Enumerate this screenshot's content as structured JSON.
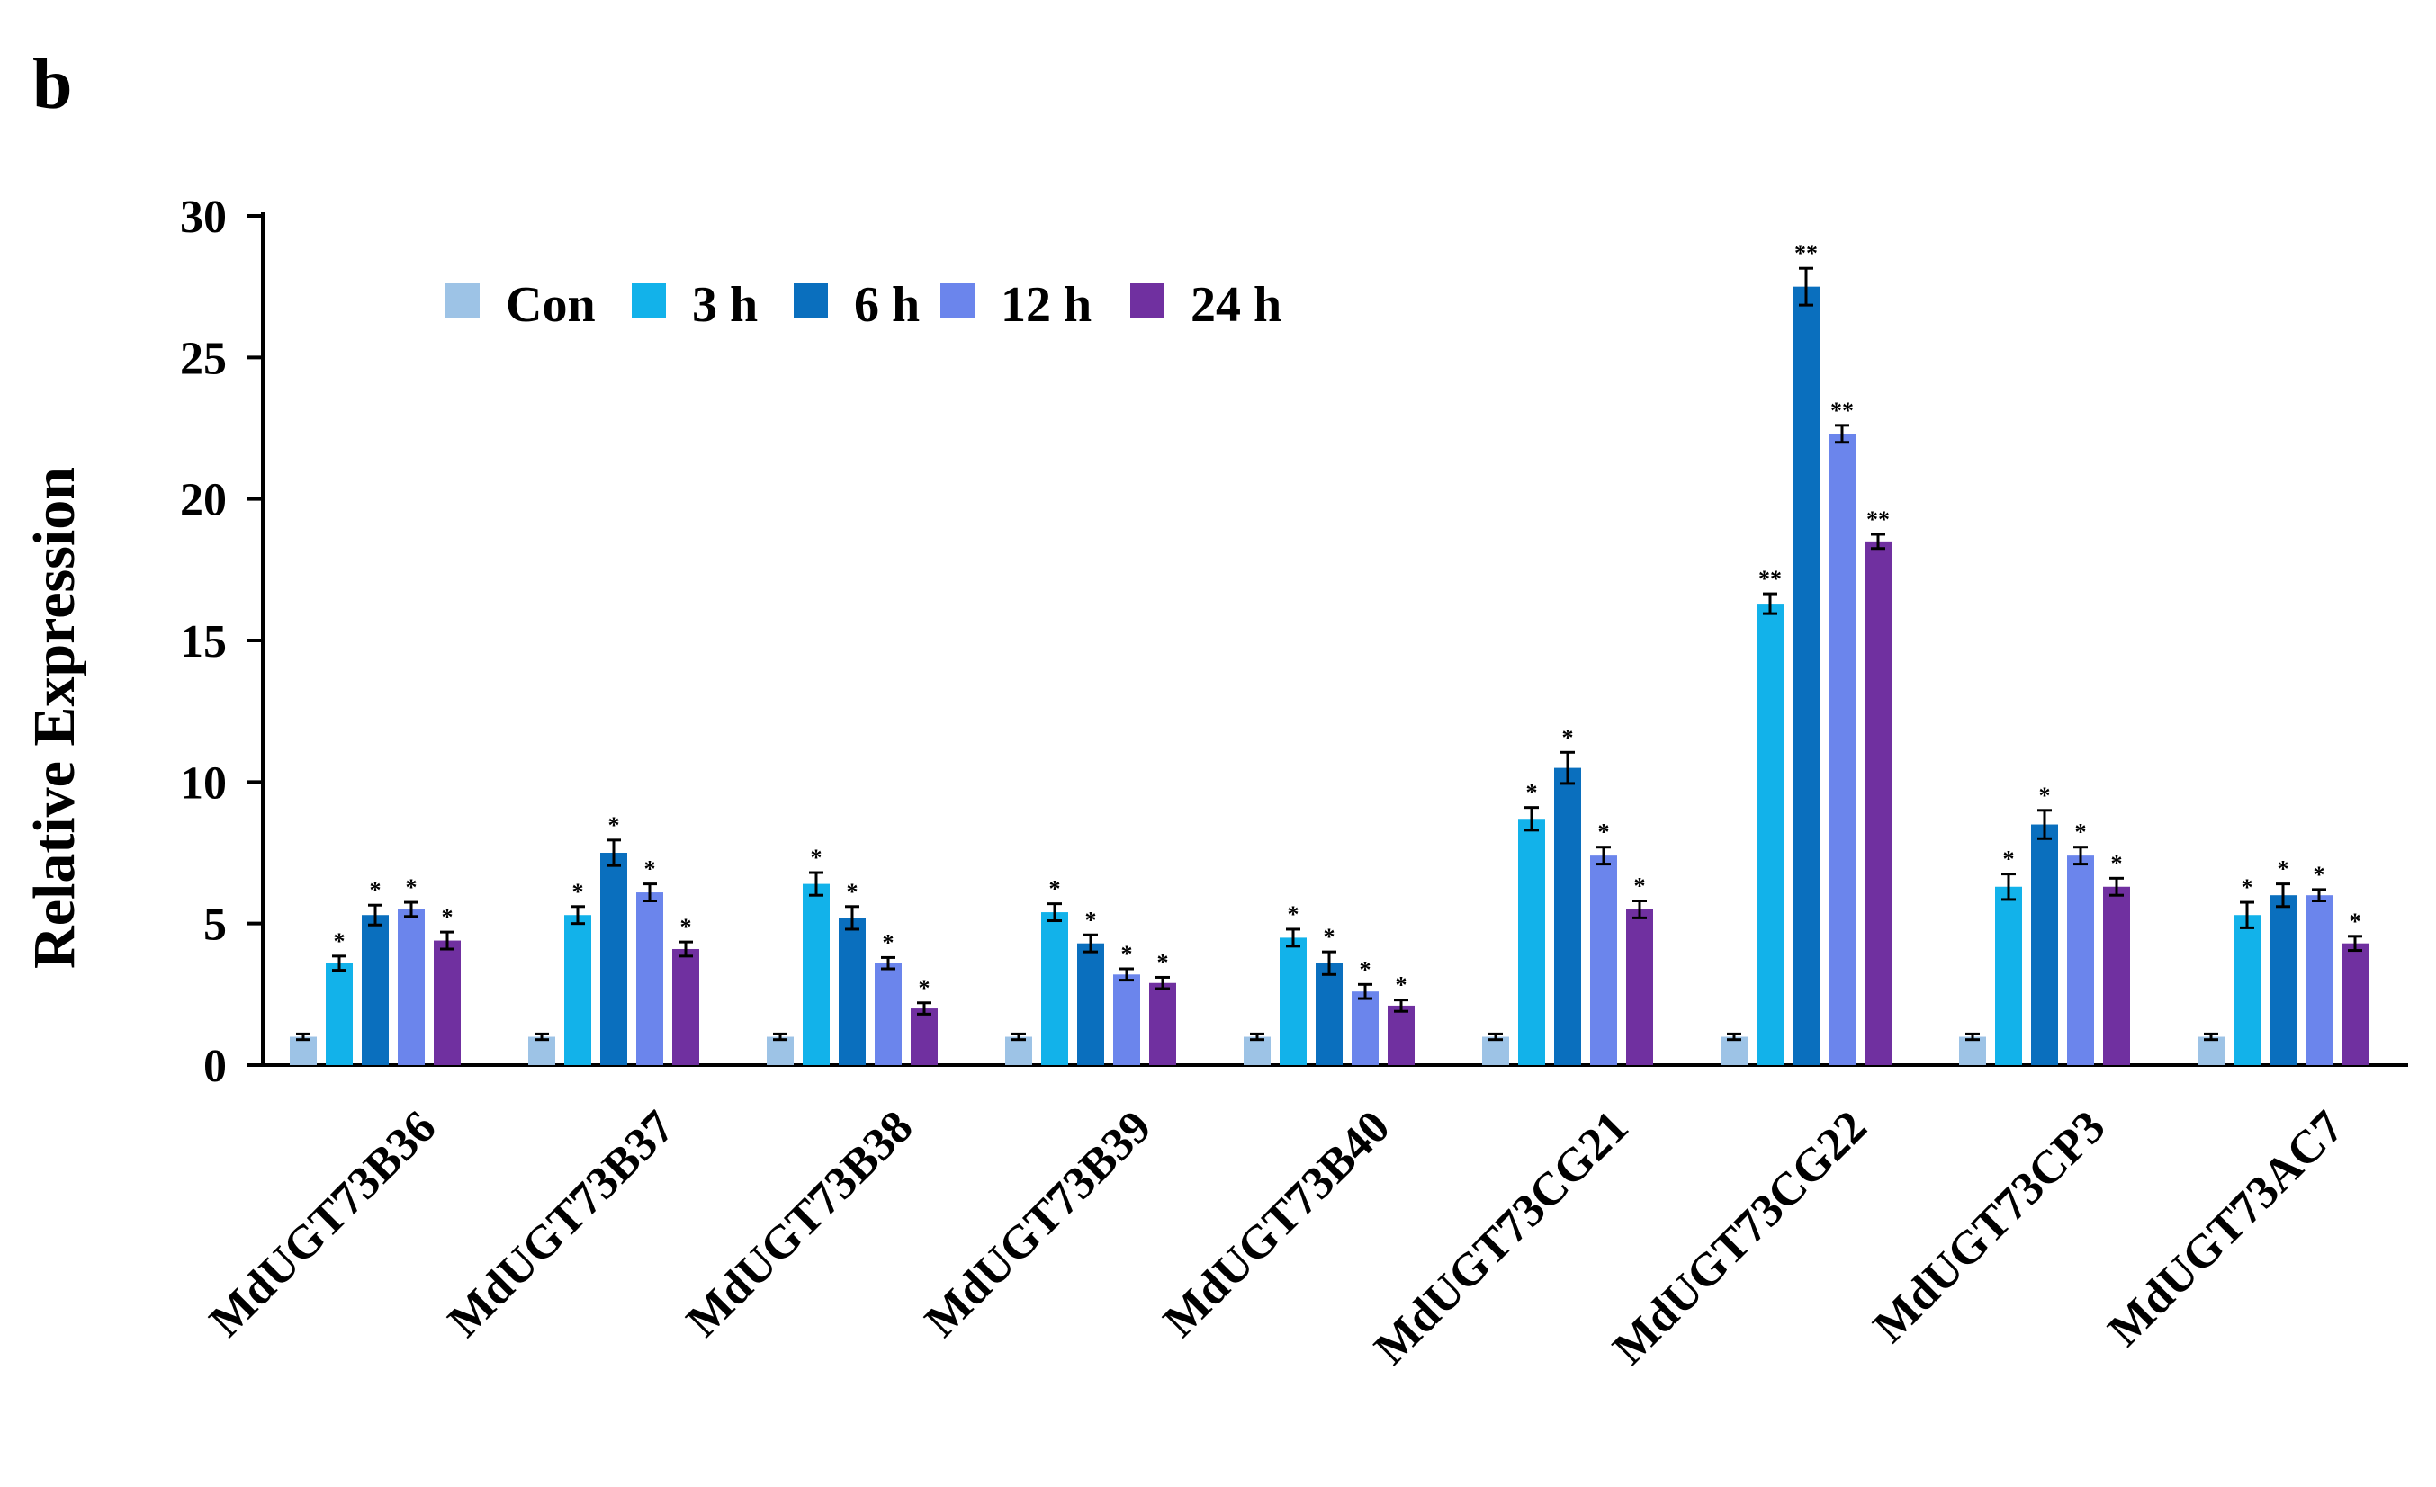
{
  "panel_label": "b",
  "chart_data": {
    "type": "bar",
    "title": "",
    "xlabel": "",
    "ylabel": "Relative Expression",
    "ylim": [
      0,
      30
    ],
    "yticks": [
      0,
      5,
      10,
      15,
      20,
      25,
      30
    ],
    "grid": false,
    "legend_position": "top-left",
    "categories": [
      "MdUGT73B36",
      "MdUGT73B37",
      "MdUGT73B38",
      "MdUGT73B39",
      "MdUGT73B40",
      "MdUGT73CG21",
      "MdUGT73CG22",
      "MdUGT73CP3",
      "MdUGT73AC7"
    ],
    "series": [
      {
        "name": "Con",
        "color": "#9dc3e6",
        "values": [
          1.0,
          1.0,
          1.0,
          1.0,
          1.0,
          1.0,
          1.0,
          1.0,
          1.0
        ],
        "errors": [
          0.1,
          0.1,
          0.1,
          0.1,
          0.1,
          0.1,
          0.1,
          0.1,
          0.1
        ],
        "significance": [
          "",
          "",
          "",
          "",
          "",
          "",
          "",
          "",
          ""
        ]
      },
      {
        "name": "3 h",
        "color": "#12b2ea",
        "values": [
          3.6,
          5.3,
          6.4,
          5.4,
          4.5,
          8.7,
          16.3,
          6.3,
          5.3
        ],
        "errors": [
          0.25,
          0.3,
          0.4,
          0.3,
          0.3,
          0.4,
          0.35,
          0.45,
          0.45
        ],
        "significance": [
          "*",
          "*",
          "*",
          "*",
          "*",
          "*",
          "**",
          "*",
          "*"
        ]
      },
      {
        "name": "6 h",
        "color": "#0a6fbe",
        "values": [
          5.3,
          7.5,
          5.2,
          4.3,
          3.6,
          10.5,
          27.5,
          8.5,
          6.0
        ],
        "errors": [
          0.35,
          0.45,
          0.4,
          0.3,
          0.4,
          0.55,
          0.65,
          0.5,
          0.4
        ],
        "significance": [
          "*",
          "*",
          "*",
          "*",
          "*",
          "*",
          "**",
          "*",
          "*"
        ]
      },
      {
        "name": "12 h",
        "color": "#6b85ec",
        "values": [
          5.5,
          6.1,
          3.6,
          3.2,
          2.6,
          7.4,
          22.3,
          7.4,
          6.0
        ],
        "errors": [
          0.25,
          0.3,
          0.2,
          0.2,
          0.25,
          0.3,
          0.3,
          0.3,
          0.2
        ],
        "significance": [
          "*",
          "*",
          "*",
          "*",
          "*",
          "*",
          "**",
          "*",
          "*"
        ]
      },
      {
        "name": "24 h",
        "color": "#7030a0",
        "values": [
          4.4,
          4.1,
          2.0,
          2.9,
          2.1,
          5.5,
          18.5,
          6.3,
          4.3
        ],
        "errors": [
          0.3,
          0.25,
          0.2,
          0.2,
          0.2,
          0.3,
          0.25,
          0.3,
          0.25
        ],
        "significance": [
          "*",
          "*",
          "*",
          "*",
          "*",
          "*",
          "**",
          "*",
          "*"
        ]
      }
    ]
  }
}
